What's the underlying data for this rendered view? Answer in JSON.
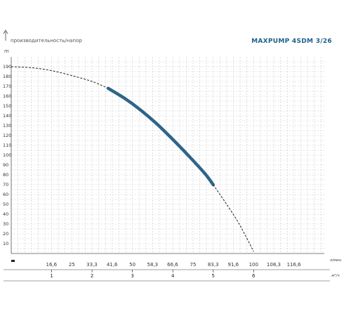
{
  "chart_data": {
    "type": "line",
    "title": "MAXPUMP 4SDM 3/26",
    "ylabel": "производительность/напор",
    "y_unit": "m",
    "x_unit_top": "л/мин",
    "x_unit_bottom": "м³/ч",
    "ylim": [
      0,
      200
    ],
    "yticks": [
      10,
      20,
      30,
      40,
      50,
      60,
      70,
      80,
      90,
      100,
      110,
      120,
      130,
      140,
      150,
      160,
      170,
      180,
      190
    ],
    "x_lpm_ticks": [
      "16,6",
      "25",
      "33,3",
      "41,6",
      "50",
      "58,3",
      "66,6",
      "75",
      "83,3",
      "91,6",
      "100",
      "108,3",
      "116,6"
    ],
    "x_m3h_ticks": [
      "1",
      "2",
      "3",
      "4",
      "5",
      "6"
    ],
    "xlim_m3h": [
      0,
      7.75
    ],
    "grid": true,
    "series": [
      {
        "style": "dashed",
        "x": [
          0,
          0.5,
          1.0,
          1.5,
          2.0,
          2.4
        ],
        "y": [
          190,
          189,
          186,
          181,
          175,
          168
        ]
      },
      {
        "style": "solid",
        "x": [
          2.4,
          2.8,
          3.2,
          3.6,
          4.0,
          4.4,
          4.8,
          5.0
        ],
        "y": [
          168,
          158,
          146,
          132,
          116,
          99,
          81,
          70
        ]
      },
      {
        "style": "dashed",
        "x": [
          5.0,
          5.3,
          5.6,
          5.8,
          6.0
        ],
        "y": [
          70,
          52,
          33,
          18,
          2
        ]
      }
    ]
  },
  "colors": {
    "solid_curve": "#2e6588",
    "dashed_curve": "#222222",
    "title": "#1f5f8b",
    "grid": "#c9c9c9"
  }
}
